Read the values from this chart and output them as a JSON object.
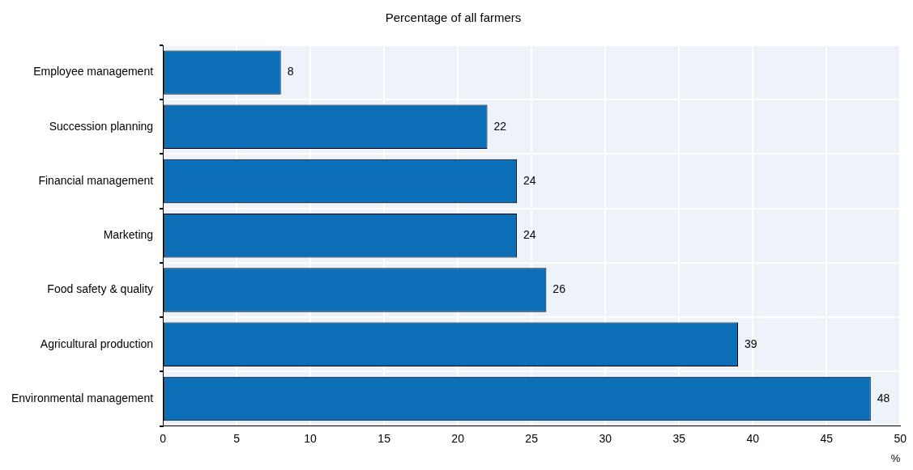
{
  "chart_data": {
    "type": "bar",
    "orientation": "horizontal",
    "title": "Percentage of all farmers",
    "xlabel": "%",
    "categories": [
      "Employee management",
      "Succession planning",
      "Financial management",
      "Marketing",
      "Food safety & quality",
      "Agricultural production",
      "Environmental management"
    ],
    "values": [
      8,
      22,
      24,
      24,
      26,
      39,
      48
    ],
    "color": "#0b6eb6",
    "xlim": [
      0,
      50
    ],
    "xticks": [
      0,
      5,
      10,
      15,
      20,
      25,
      30,
      35,
      40,
      45,
      50
    ],
    "grid": true,
    "data_labels": true,
    "legend": false
  }
}
